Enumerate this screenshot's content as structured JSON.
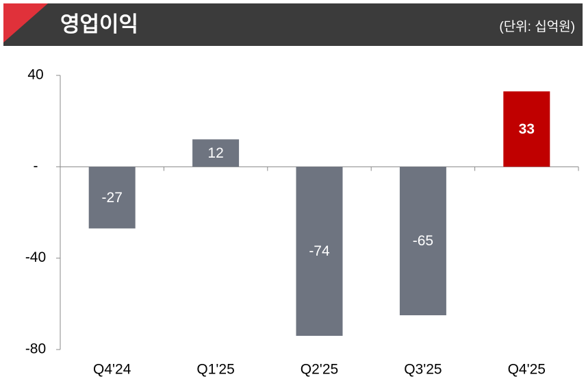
{
  "chart_data": {
    "type": "bar",
    "title": "영업이익",
    "subtitle": "(단위: 십억원)",
    "categories": [
      "Q4'24",
      "Q1'25",
      "Q2'25",
      "Q3'25",
      "Q4'25"
    ],
    "values": [
      -27,
      12,
      -74,
      -65,
      33
    ],
    "colors": [
      "#6e7480",
      "#6e7480",
      "#6e7480",
      "#6e7480",
      "#c00000"
    ],
    "ylim": [
      -80,
      40
    ],
    "yticks": [
      40,
      {
        "value": 0,
        "label": "-"
      },
      -40,
      -80
    ]
  }
}
